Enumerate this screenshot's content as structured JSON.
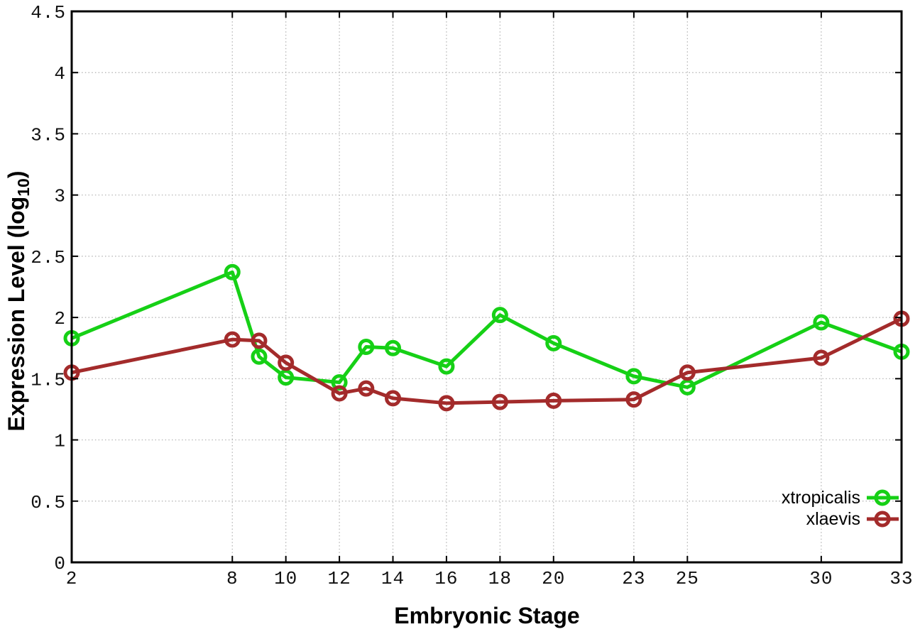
{
  "page": {
    "background": "#ffffff",
    "grid_color": "#b0b0b0",
    "axis_color": "#000000"
  },
  "chart_data": {
    "type": "line",
    "title": "",
    "xlabel": "Embryonic Stage",
    "ylabel": "Expression Level (log10)",
    "xlim": [
      2,
      33
    ],
    "ylim": [
      0,
      4.5
    ],
    "x_ticks": [
      2,
      8,
      10,
      12,
      14,
      16,
      18,
      20,
      23,
      25,
      30,
      33
    ],
    "y_ticks": [
      0,
      0.5,
      1,
      1.5,
      2,
      2.5,
      3,
      3.5,
      4,
      4.5
    ],
    "grid": true,
    "grid_style": "dotted",
    "legend_position": "bottom-right",
    "marker": "open-circle",
    "x": [
      2,
      8,
      9,
      10,
      12,
      13,
      14,
      16,
      18,
      20,
      23,
      25,
      30,
      33
    ],
    "series": [
      {
        "name": "xtropicalis",
        "color": "#16d016",
        "values": [
          1.83,
          2.37,
          1.68,
          1.51,
          1.47,
          1.76,
          1.75,
          1.6,
          2.02,
          1.79,
          1.52,
          1.43,
          1.96,
          1.72
        ]
      },
      {
        "name": "xlaevis",
        "color": "#a32b2b",
        "values": [
          1.55,
          1.82,
          1.81,
          1.63,
          1.38,
          1.42,
          1.34,
          1.3,
          1.31,
          1.32,
          1.33,
          1.55,
          1.67,
          1.99
        ]
      }
    ]
  }
}
